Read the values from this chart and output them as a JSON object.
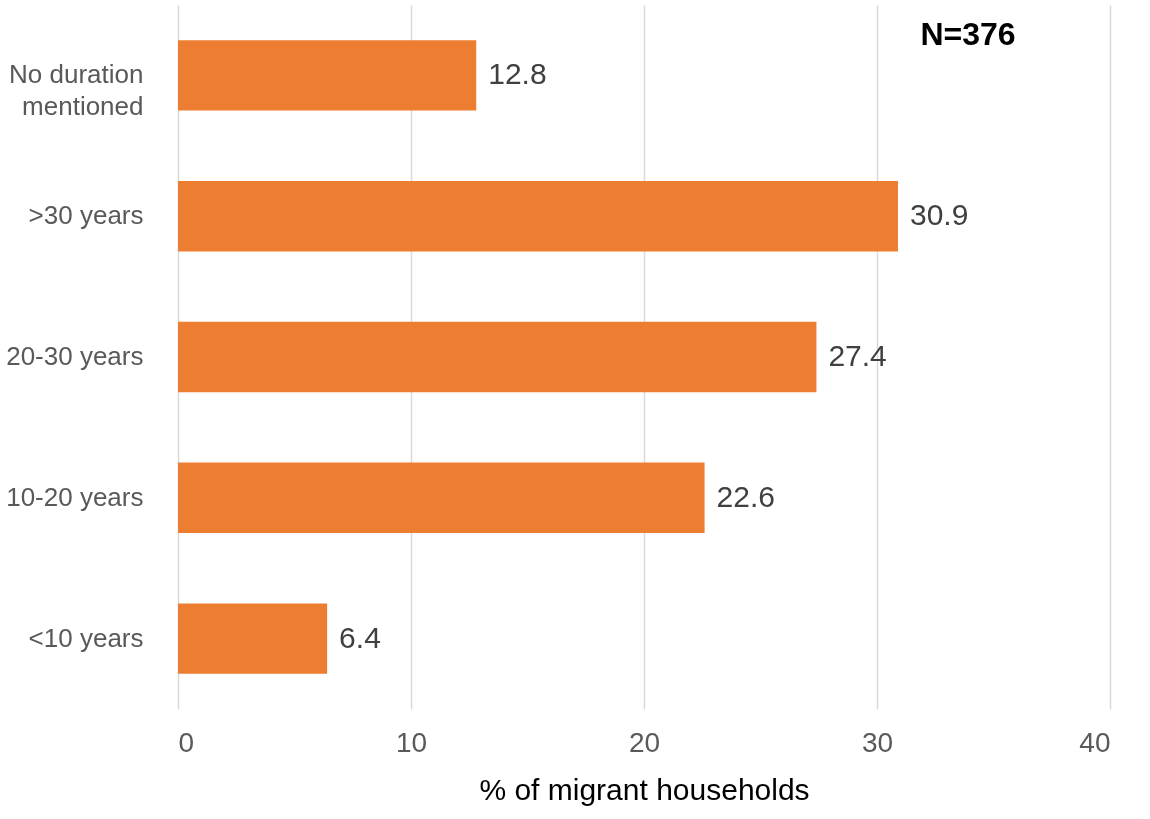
{
  "chart_data": {
    "type": "bar",
    "orientation": "horizontal",
    "categories": [
      "No duration mentioned",
      ">30 years",
      "20-30 years",
      "10-20 years",
      "<10 years"
    ],
    "values": [
      12.8,
      30.9,
      27.4,
      22.6,
      6.4
    ],
    "color": "#ed7d31",
    "xlabel": "% of migrant households",
    "xlim": [
      0,
      40
    ],
    "xticks": [
      0,
      10,
      20,
      30,
      40
    ],
    "grid": "x",
    "data_labels": true,
    "annotations": [
      "N=376"
    ]
  }
}
